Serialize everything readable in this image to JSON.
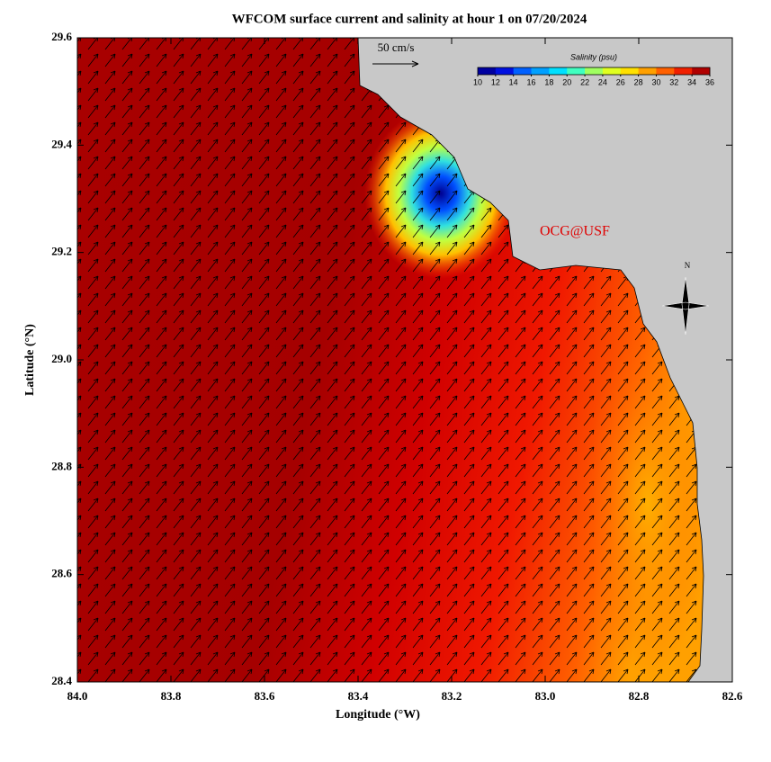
{
  "chart_data": {
    "type": "map",
    "title": "WFCOM surface current and salinity at hour 1 on 07/20/2024",
    "x_label": "Longitude (°W)",
    "y_label": "Latitude (°N)",
    "xlim": [
      84,
      82.6
    ],
    "ylim": [
      28.4,
      29.6
    ],
    "xticks": [
      {
        "value": 84,
        "label": "84.0"
      },
      83.8,
      83.6,
      83.4,
      83.2,
      {
        "value": 83,
        "label": "83.0"
      },
      82.8,
      82.6
    ],
    "yticks": [
      28.4,
      28.6,
      28.8,
      {
        "value": 29,
        "label": "29.0"
      },
      29.2,
      29.4,
      29.6
    ],
    "colorbar": {
      "label": "Salinity (psu)",
      "lim": [
        10,
        36
      ],
      "ticks": [
        10,
        12,
        14,
        16,
        18,
        20,
        22,
        24,
        26,
        28,
        30,
        32,
        34,
        36
      ],
      "colors": [
        "#0000a0",
        "#0010e0",
        "#0060ff",
        "#00a0ff",
        "#00e0ff",
        "#40ffc0",
        "#a0ff60",
        "#e0ff20",
        "#ffe000",
        "#ffa000",
        "#ff6000",
        "#f02000",
        "#b00000"
      ]
    },
    "scale_label": "50 cm/s",
    "watermark": "OCG@USF",
    "north_label": "N"
  }
}
